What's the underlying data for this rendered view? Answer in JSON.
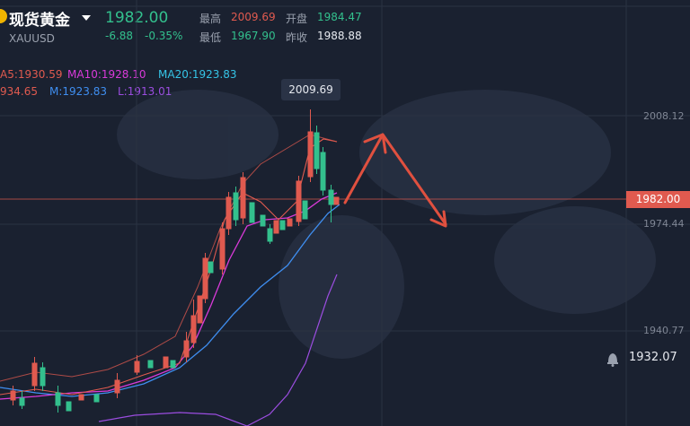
{
  "header": {
    "title": "现货黄金",
    "code": "XAUUSD",
    "price": "1982.00",
    "change": "-6.88",
    "change_pct": "-0.35%",
    "high_label": "最高",
    "high": "2009.69",
    "open_label": "开盘",
    "open": "1984.47",
    "low_label": "最低",
    "low": "1967.90",
    "prev_close_label": "昨收",
    "prev_close": "1988.88"
  },
  "indicators": {
    "ma5": "A5:1930.59",
    "ma10": "MA10:1928.10",
    "ma20": "MA20:1923.83",
    "boll_upper": "934.65",
    "boll_mid": "M:1923.83",
    "boll_lower": "L:1913.01"
  },
  "chart": {
    "tooltip": "2009.69",
    "axis_labels": [
      "2008.12",
      "1974.44",
      "1940.77"
    ],
    "current_price_tag": "1982.00",
    "alert_price": "1932.07"
  },
  "colors": {
    "background": "#1a2130",
    "up": "#e05a4f",
    "down": "#33c08d",
    "ma5": "#e05a4f",
    "ma10": "#d93ad9",
    "ma20": "#35c4e6",
    "boll_mid": "#3f8ef0",
    "boll_lower": "#9b4de0"
  },
  "icons": {
    "logo": "gold-logo-icon",
    "dropdown": "chevron-down-icon",
    "bell": "bell-icon"
  }
}
